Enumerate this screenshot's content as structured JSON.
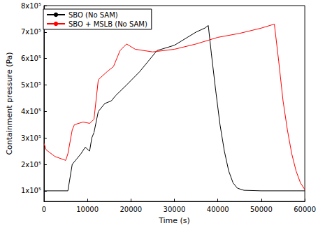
{
  "chart_data": {
    "type": "line",
    "x_label": "Time (s)",
    "y_label": "Containment pressure (Pa)",
    "xlim": [
      0,
      60000
    ],
    "xticks": [
      0,
      10000,
      20000,
      30000,
      40000,
      50000,
      60000
    ],
    "ylim": [
      60000,
      800000
    ],
    "yticks": [
      {
        "value": 100000,
        "label": "1x10⁵"
      },
      {
        "value": 200000,
        "label": "2x10⁵"
      },
      {
        "value": 300000,
        "label": "3x10⁵"
      },
      {
        "value": 400000,
        "label": "4x10⁵"
      },
      {
        "value": 500000,
        "label": "5x10⁵"
      },
      {
        "value": 600000,
        "label": "6x10⁵"
      },
      {
        "value": 700000,
        "label": "7x10⁵"
      },
      {
        "value": 800000,
        "label": "8x10⁵"
      }
    ],
    "grid": false,
    "legend": "upper left",
    "series": [
      {
        "name": "SBO (No SAM)",
        "color": "#000000",
        "line_style": "solid",
        "x": [
          0,
          5500,
          6000,
          6500,
          7500,
          8500,
          9500,
          10500,
          11000,
          11500,
          12500,
          13500,
          14000,
          15500,
          16500,
          19000,
          22000,
          24000,
          26000,
          30000,
          33000,
          35000,
          37000,
          37800,
          38500,
          39500,
          40500,
          41500,
          42500,
          43500,
          44500,
          46000,
          50000,
          60000
        ],
        "values": [
          100000,
          100000,
          150000,
          200000,
          220000,
          240000,
          265000,
          250000,
          300000,
          320000,
          400000,
          420000,
          430000,
          440000,
          460000,
          500000,
          550000,
          590000,
          630000,
          650000,
          680000,
          700000,
          715000,
          725000,
          620000,
          480000,
          350000,
          250000,
          175000,
          130000,
          110000,
          102000,
          100000,
          100000
        ]
      },
      {
        "name": "SBO + MSLB (No SAM)",
        "color": "#ff0000",
        "line_style": "solid",
        "x": [
          0,
          500,
          2500,
          5000,
          5500,
          6500,
          7000,
          9000,
          10500,
          11500,
          12500,
          14500,
          16000,
          17500,
          19000,
          21000,
          25000,
          30000,
          35000,
          40000,
          45000,
          50000,
          53000,
          54000,
          55000,
          56000,
          57000,
          58000,
          59000,
          60000
        ],
        "values": [
          280000,
          255000,
          230000,
          215000,
          240000,
          330000,
          350000,
          360000,
          355000,
          370000,
          520000,
          550000,
          570000,
          630000,
          655000,
          635000,
          625000,
          635000,
          655000,
          680000,
          695000,
          715000,
          730000,
          590000,
          440000,
          330000,
          240000,
          175000,
          130000,
          105000
        ]
      }
    ]
  }
}
